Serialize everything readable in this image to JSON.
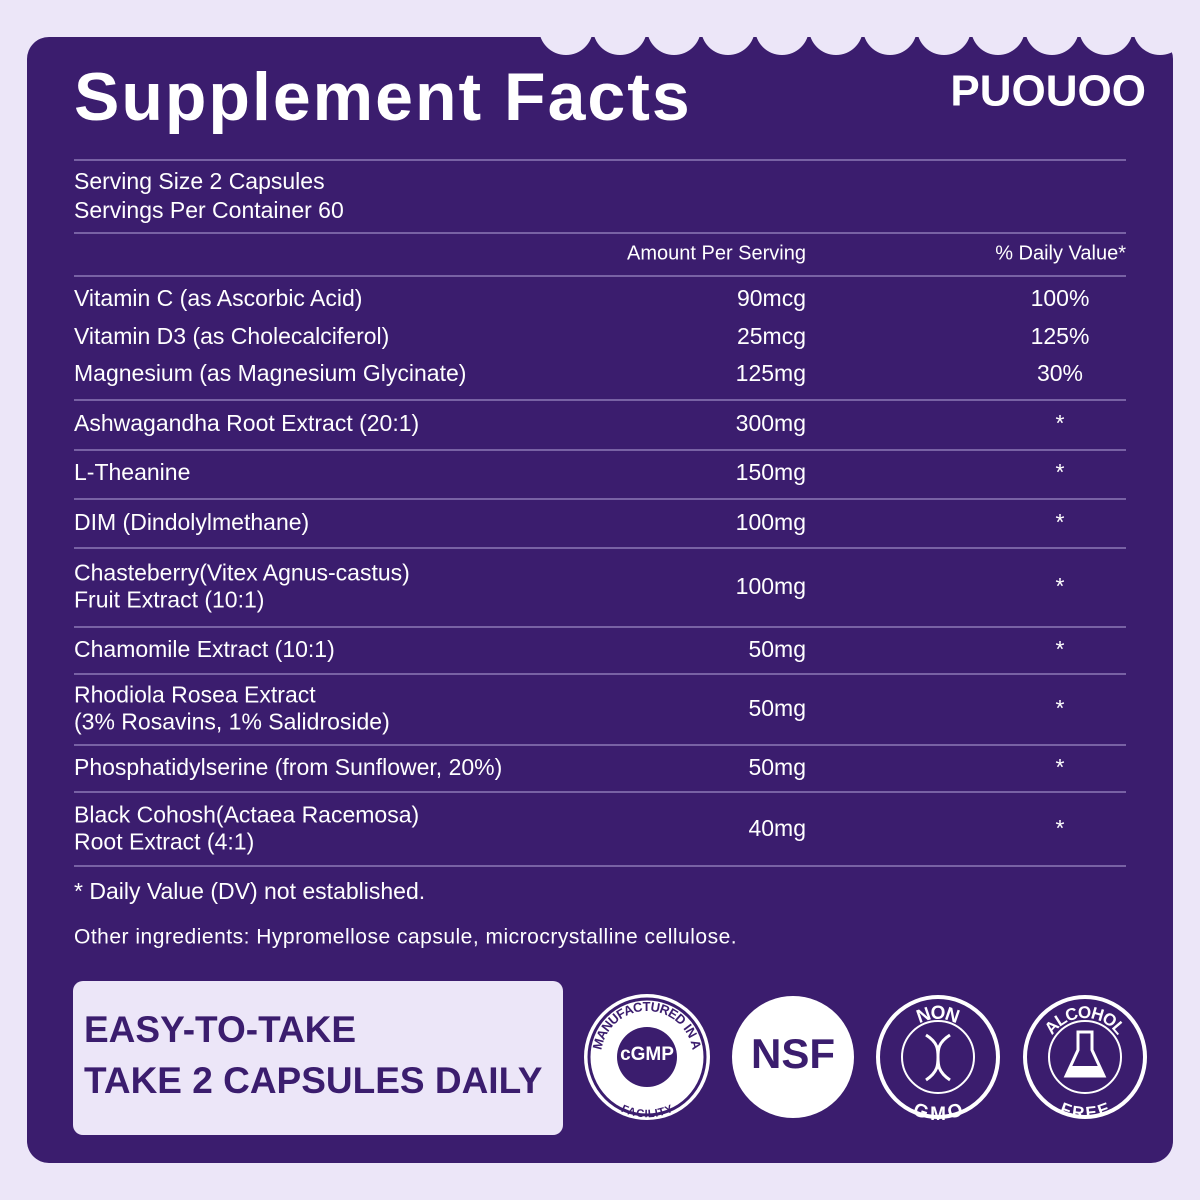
{
  "brand": "PUOUOO",
  "title": "Supplement Facts",
  "serving_size": "Serving Size 2 Capsules",
  "servings_per_container": "Servings Per Container 60",
  "table": {
    "headers": [
      "Amount Per Serving",
      "% Daily Value*"
    ],
    "rows": [
      [
        [
          "Vitamin C (as Ascorbic Acid)"
        ],
        "90mcg",
        "100%"
      ],
      [
        [
          "Vitamin D3 (as Cholecalciferol)"
        ],
        "25mcg",
        "125%"
      ],
      [
        [
          "Magnesium (as Magnesium Glycinate)"
        ],
        "125mg",
        "30%"
      ],
      [
        [
          "Ashwagandha Root Extract (20:1)"
        ],
        "300mg",
        "*"
      ],
      [
        [
          "L-Theanine"
        ],
        "150mg",
        "*"
      ],
      [
        [
          "DIM (Dindolylmethane)"
        ],
        "100mg",
        "*"
      ],
      [
        [
          "Chasteberry(Vitex Agnus-castus)",
          "Fruit Extract (10:1)"
        ],
        "100mg",
        "*"
      ],
      [
        [
          "Chamomile Extract (10:1)"
        ],
        "50mg",
        "*"
      ],
      [
        [
          "Rhodiola Rosea Extract",
          "(3% Rosavins, 1% Salidroside)"
        ],
        "50mg",
        "*"
      ],
      [
        [
          "Phosphatidylserine (from Sunflower, 20%)"
        ],
        "50mg",
        "*"
      ],
      [
        [
          "Black Cohosh(Actaea Racemosa)",
          "Root Extract (4:1)"
        ],
        "40mg",
        "*"
      ]
    ]
  },
  "footnote": "* Daily Value (DV) not established.",
  "other_ingredients": "Other ingredients: Hypromellose capsule, microcrystalline cellulose.",
  "callout": [
    "EASY-TO-TAKE",
    "TAKE 2 CAPSULES DAILY"
  ],
  "badges": {
    "cgmp": {
      "top": "MANUFACTURED IN A",
      "center": "cGMP",
      "bottom": "FACILITY"
    },
    "nsf": "NSF",
    "non_gmo": {
      "top": "NON",
      "bottom": "GMO"
    },
    "alcohol_free": {
      "top": "ALCOHOL",
      "bottom": "FREE"
    }
  }
}
